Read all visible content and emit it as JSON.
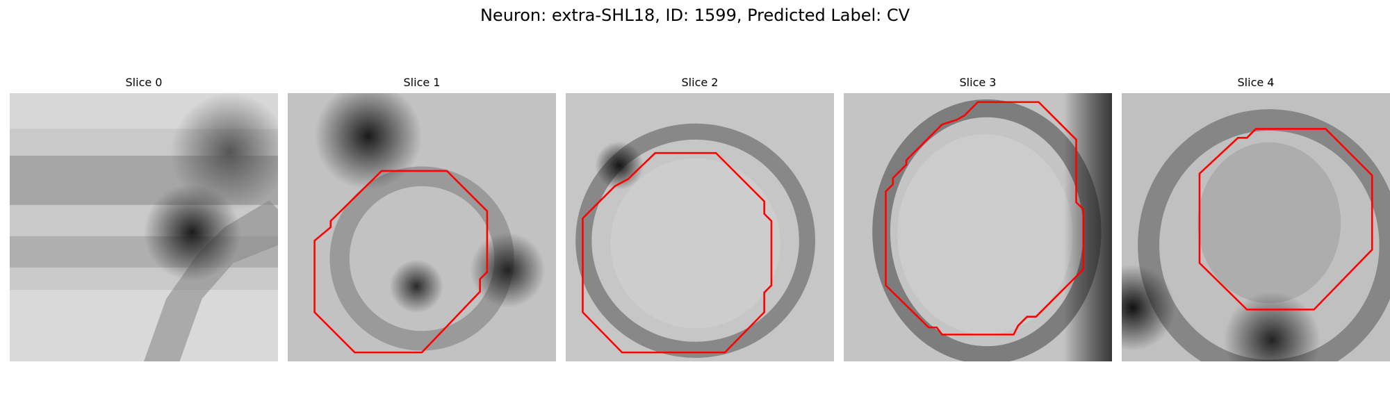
{
  "figure": {
    "title": "Neuron: extra-SHL18, ID: 1599, Predicted Label: CV",
    "contour_color": "#ff0000"
  },
  "slices": [
    {
      "title": "Slice 0",
      "has_contour": false
    },
    {
      "title": "Slice 1",
      "has_contour": true
    },
    {
      "title": "Slice 2",
      "has_contour": true
    },
    {
      "title": "Slice 3",
      "has_contour": true
    },
    {
      "title": "Slice 4",
      "has_contour": true
    }
  ]
}
